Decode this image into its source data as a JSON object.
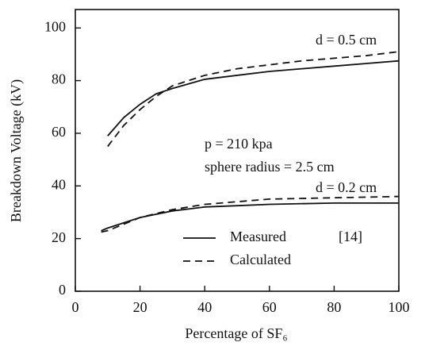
{
  "chart_data": {
    "type": "line",
    "y_label": "Breakdown Voltage (kV)",
    "x_label": "Percentage of SF₆",
    "xlim": [
      0,
      100
    ],
    "ylim": [
      0,
      107
    ],
    "xticks": [
      0,
      20,
      40,
      60,
      80,
      100
    ],
    "yticks": [
      0,
      20,
      40,
      60,
      80,
      100
    ],
    "grid": false,
    "series": [
      {
        "name": "Measured",
        "color": "#111111",
        "style": "solid",
        "x": [
          10,
          15,
          20,
          25,
          30,
          40,
          50,
          60,
          70,
          80,
          90,
          100
        ],
        "values": [
          59,
          66,
          71,
          75,
          77,
          80.5,
          82,
          83.5,
          84.5,
          85.5,
          86.5,
          87.5
        ]
      },
      {
        "name": "Calculated",
        "color": "#111111",
        "style": "dashed",
        "x": [
          10,
          15,
          20,
          25,
          30,
          40,
          50,
          60,
          70,
          80,
          90,
          100
        ],
        "values": [
          55,
          63,
          69,
          74,
          78,
          82,
          84.5,
          86,
          87.5,
          88.5,
          89.5,
          91
        ]
      },
      {
        "name": "Measured",
        "color": "#111111",
        "style": "solid",
        "x": [
          8,
          10,
          15,
          20,
          30,
          40,
          50,
          60,
          80,
          100
        ],
        "values": [
          23,
          24,
          26,
          28,
          30.5,
          32,
          32.5,
          33,
          33.5,
          33.5
        ]
      },
      {
        "name": "Calculated",
        "color": "#111111",
        "style": "dashed",
        "x": [
          8,
          10,
          15,
          20,
          30,
          40,
          50,
          60,
          80,
          100
        ],
        "values": [
          22.5,
          23,
          25.5,
          28,
          31,
          33,
          34,
          35,
          35.5,
          36
        ]
      }
    ],
    "legend_note": "[14]",
    "annotations": [
      "d = 0.5 cm",
      "p = 210 kpa",
      "sphere radius = 2.5 cm",
      "d = 0.2 cm"
    ]
  }
}
